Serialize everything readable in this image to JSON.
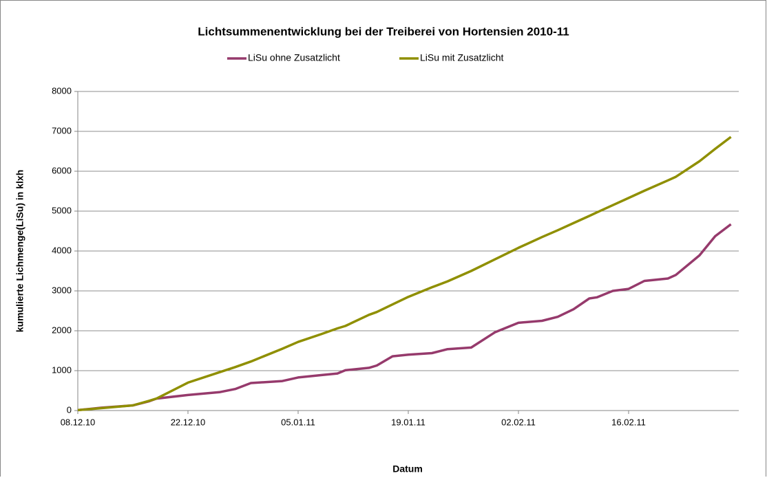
{
  "chart_data": {
    "type": "line",
    "title": "Lichtsummenentwicklung bei der Treiberei von Hortensien 2010-11",
    "x_label": "Datum",
    "y_label": "kumulierte Lichmenge(LiSu) in klxh",
    "x": [
      "2010-12-08",
      "2010-12-11",
      "2010-12-15",
      "2010-12-17",
      "2010-12-18",
      "2010-12-22",
      "2010-12-26",
      "2010-12-28",
      "2010-12-30",
      "2011-01-03",
      "2011-01-05",
      "2011-01-08",
      "2011-01-10",
      "2011-01-11",
      "2011-01-14",
      "2011-01-15",
      "2011-01-17",
      "2011-01-19",
      "2011-01-22",
      "2011-01-24",
      "2011-01-27",
      "2011-01-30",
      "2011-02-02",
      "2011-02-05",
      "2011-02-07",
      "2011-02-09",
      "2011-02-11",
      "2011-02-12",
      "2011-02-14",
      "2011-02-16",
      "2011-02-18",
      "2011-02-21",
      "2011-02-22",
      "2011-02-25",
      "2011-02-27",
      "2011-03-01"
    ],
    "series": [
      {
        "name": "LiSu ohne Zusatzlicht",
        "color": "#963a6c",
        "values": [
          10,
          70,
          130,
          230,
          300,
          390,
          460,
          540,
          690,
          740,
          830,
          890,
          930,
          1010,
          1070,
          1130,
          1360,
          1400,
          1440,
          1540,
          1580,
          1960,
          2200,
          2250,
          2350,
          2540,
          2810,
          2840,
          3000,
          3050,
          3250,
          3310,
          3400,
          3890,
          4370,
          4670
        ]
      },
      {
        "name": "LiSu mit Zusatzlicht",
        "color": "#8f8f00",
        "values": [
          10,
          60,
          130,
          240,
          300,
          700,
          960,
          1090,
          1230,
          1550,
          1720,
          1920,
          2060,
          2120,
          2400,
          2470,
          2660,
          2850,
          3090,
          3240,
          3500,
          3790,
          4080,
          4350,
          4520,
          4700,
          4880,
          4970,
          5150,
          5330,
          5510,
          5770,
          5860,
          6250,
          6560,
          6860
        ]
      }
    ],
    "xlim": [
      "2010-12-08",
      "2011-03-02"
    ],
    "xticks": [
      {
        "value": "2010-12-08",
        "label": "08.12.10"
      },
      {
        "value": "2010-12-22",
        "label": "22.12.10"
      },
      {
        "value": "2011-01-05",
        "label": "05.01.11"
      },
      {
        "value": "2011-01-19",
        "label": "19.01.11"
      },
      {
        "value": "2011-02-02",
        "label": "02.02.11"
      },
      {
        "value": "2011-02-16",
        "label": "16.02.11"
      }
    ],
    "ylim": [
      0,
      8000
    ],
    "yticks": [
      0,
      1000,
      2000,
      3000,
      4000,
      5000,
      6000,
      7000,
      8000
    ],
    "grid": true,
    "legend": "top"
  }
}
